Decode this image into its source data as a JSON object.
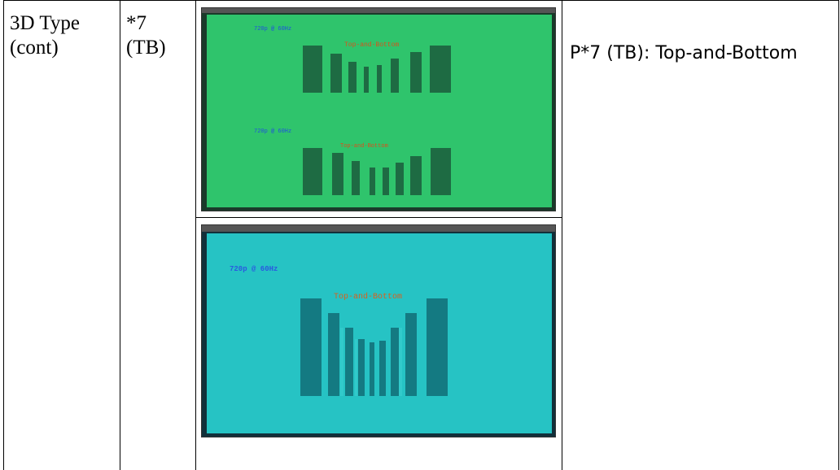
{
  "table": {
    "col1": {
      "line1": "3D Type",
      "line2": "(cont)"
    },
    "col2": {
      "line1": "*7",
      "line2": "(TB)"
    },
    "description": "P*7 (TB): Top-and-Bottom"
  },
  "photo_top": {
    "screen_color": "#2fc46c",
    "bar_color": "#1e6b43",
    "upper": {
      "resolution_text": "720p @ 60Hz",
      "mode_text": "Top-and-Bottom"
    },
    "lower": {
      "resolution_text": "720p @ 60Hz",
      "mode_text": "Top-and-Bottom"
    }
  },
  "photo_bottom": {
    "screen_color": "#26c3c4",
    "bar_color": "#147a82",
    "resolution_text": "720p @ 60Hz",
    "mode_text": "Top-and-Bottom"
  }
}
